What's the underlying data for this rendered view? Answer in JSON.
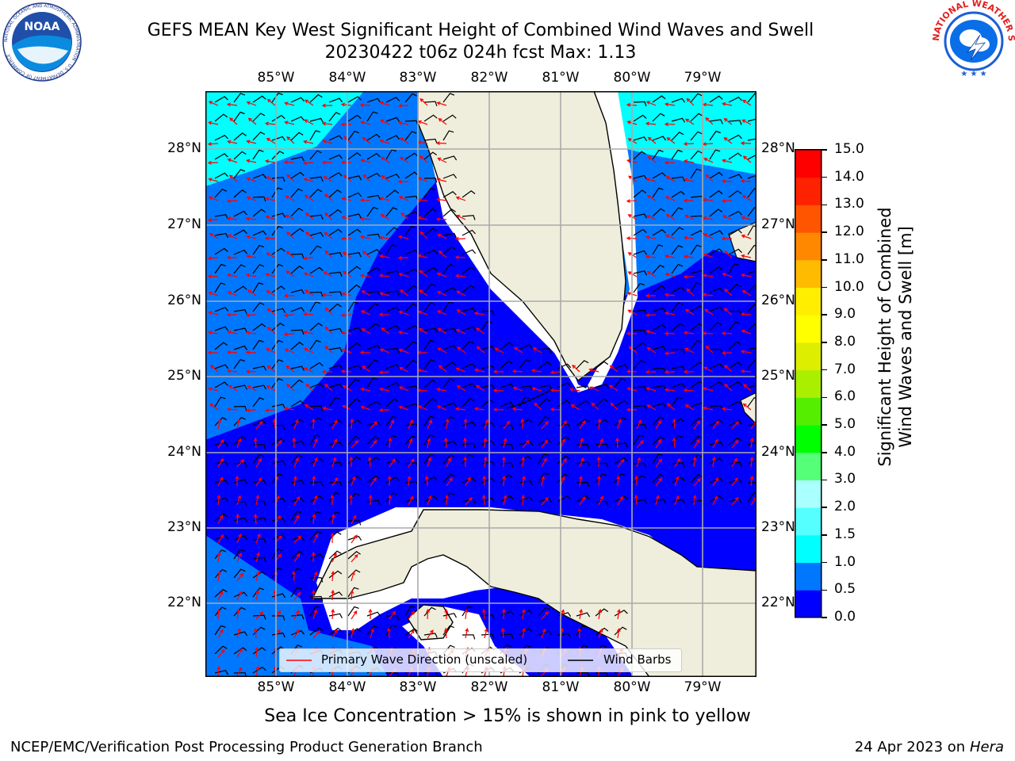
{
  "title": {
    "line1": "GEFS MEAN Key West Significant Height of Combined Wind Waves and Swell",
    "line2": "20230422 t06z 024h fcst   Max: 1.13"
  },
  "logos": {
    "noaa_text": "NOAA",
    "noaa_ring": "NATIONAL OCEANIC AND ATMOSPHERIC ADMINISTRATION · U.S. DEPARTMENT OF COMMERCE",
    "nws_ring": "NATIONAL WEATHER SERVICE"
  },
  "map": {
    "lon_ticks": [
      "85°W",
      "84°W",
      "83°W",
      "82°W",
      "81°W",
      "80°W",
      "79°W"
    ],
    "lat_ticks": [
      "28°N",
      "27°N",
      "26°N",
      "25°N",
      "24°N",
      "23°N",
      "22°N"
    ],
    "extent": {
      "lon_min": -86.0,
      "lon_max": -78.25,
      "lat_min": 21.0,
      "lat_max": 28.75
    },
    "land_color": "#efeedc",
    "sea_colors": {
      "0.0-0.5": "#0000ff",
      "0.5-1.0": "#0077ff",
      "1.0-1.5": "#00ffff"
    }
  },
  "legend": {
    "wave": "Primary Wave Direction (unscaled)",
    "barbs": "Wind Barbs",
    "wave_color": "#ff0000",
    "barb_color": "#000000"
  },
  "colorbar": {
    "label_line1": "Significant Height of Combined",
    "label_line2": "Wind Waves and Swell [m]",
    "ticks": [
      "0.0",
      "0.5",
      "1.0",
      "1.5",
      "2.0",
      "3.0",
      "4.0",
      "5.0",
      "6.0",
      "7.0",
      "8.0",
      "9.0",
      "10.0",
      "11.0",
      "12.0",
      "13.0",
      "14.0",
      "15.0"
    ],
    "colors": [
      "#0000ff",
      "#0077ff",
      "#00ffff",
      "#55ffff",
      "#aaffff",
      "#55ff77",
      "#00ff00",
      "#55ee00",
      "#aaee00",
      "#ddee00",
      "#ffff00",
      "#ffee00",
      "#ffbb00",
      "#ff8800",
      "#ff5500",
      "#ff2200",
      "#ff0000"
    ]
  },
  "note": "Sea Ice Concentration > 15% is shown in pink to yellow",
  "footer": {
    "left": "NCEP/EMC/Verification Post Processing Product Generation Branch",
    "right_date": "24 Apr 2023 on ",
    "right_host": "Hera"
  }
}
